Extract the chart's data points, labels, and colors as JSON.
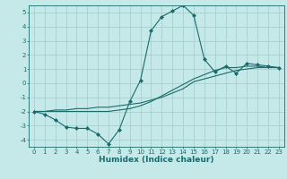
{
  "xlabel": "Humidex (Indice chaleur)",
  "ylabel": "",
  "bg_color": "#c5e8e8",
  "line_color": "#1a6b6b",
  "grid_color": "#a8d0d0",
  "xlim": [
    -0.5,
    23.5
  ],
  "ylim": [
    -4.5,
    5.5
  ],
  "xticks": [
    0,
    1,
    2,
    3,
    4,
    5,
    6,
    7,
    8,
    9,
    10,
    11,
    12,
    13,
    14,
    15,
    16,
    17,
    18,
    19,
    20,
    21,
    22,
    23
  ],
  "yticks": [
    -4,
    -3,
    -2,
    -1,
    0,
    1,
    2,
    3,
    4,
    5
  ],
  "line1_x": [
    0,
    1,
    2,
    3,
    4,
    5,
    6,
    7,
    8,
    9,
    10,
    11,
    12,
    13,
    14,
    15,
    16,
    17,
    18,
    19,
    20,
    21,
    22,
    23
  ],
  "line1_y": [
    -2.0,
    -2.2,
    -2.6,
    -3.1,
    -3.2,
    -3.2,
    -3.6,
    -4.3,
    -3.3,
    -1.3,
    0.2,
    3.7,
    4.7,
    5.1,
    5.5,
    4.8,
    1.7,
    0.8,
    1.2,
    0.7,
    1.4,
    1.3,
    1.2,
    1.1
  ],
  "line2_x": [
    0,
    1,
    2,
    3,
    4,
    5,
    6,
    7,
    8,
    9,
    10,
    11,
    12,
    13,
    14,
    15,
    16,
    17,
    18,
    19,
    20,
    21,
    22,
    23
  ],
  "line2_y": [
    -2.0,
    -2.0,
    -1.9,
    -1.9,
    -1.8,
    -1.8,
    -1.7,
    -1.7,
    -1.6,
    -1.5,
    -1.4,
    -1.2,
    -1.0,
    -0.7,
    -0.4,
    0.1,
    0.3,
    0.5,
    0.7,
    0.9,
    1.0,
    1.1,
    1.1,
    1.1
  ],
  "line3_x": [
    0,
    1,
    2,
    3,
    4,
    5,
    6,
    7,
    8,
    9,
    10,
    11,
    12,
    13,
    14,
    15,
    16,
    17,
    18,
    19,
    20,
    21,
    22,
    23
  ],
  "line3_y": [
    -2.0,
    -2.0,
    -2.0,
    -2.0,
    -2.0,
    -2.0,
    -2.0,
    -2.0,
    -1.9,
    -1.8,
    -1.6,
    -1.3,
    -0.9,
    -0.5,
    -0.1,
    0.3,
    0.6,
    0.9,
    1.1,
    1.1,
    1.2,
    1.2,
    1.1,
    1.1
  ],
  "tick_fontsize": 5.0,
  "xlabel_fontsize": 6.5
}
